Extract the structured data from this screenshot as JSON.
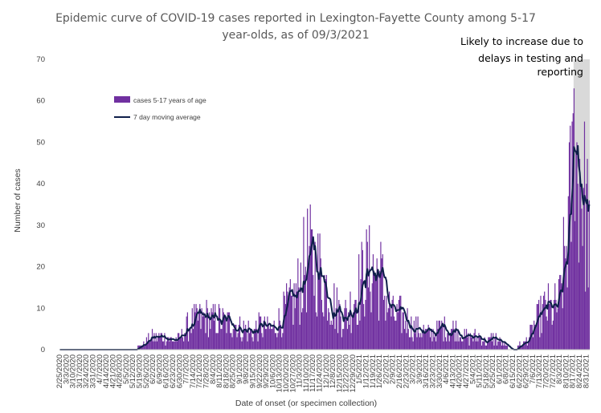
{
  "chart_data": {
    "type": "bar",
    "title_lines": [
      "Epidemic curve of COVID-19 cases reported in Lexington-Fayette County among 5-17",
      "year-olds, as of 09/3/2021"
    ],
    "xlabel": "Date of onset (or specimen collection)",
    "ylabel": "Number of cases",
    "ylim": [
      0,
      70
    ],
    "yticks": [
      0,
      10,
      20,
      30,
      40,
      50,
      60,
      70
    ],
    "x_range": [
      "2020-02-25",
      "2021-09-03"
    ],
    "x_tick_labels": [
      "2/25/2020",
      "3/3/2020",
      "3/10/2020",
      "3/17/2020",
      "3/24/2020",
      "3/31/2020",
      "4/7/2020",
      "4/14/2020",
      "4/21/2020",
      "4/28/2020",
      "5/5/2020",
      "5/12/2020",
      "5/19/2020",
      "5/26/2020",
      "6/2/2020",
      "6/9/2020",
      "6/16/2020",
      "6/23/2020",
      "6/30/2020",
      "7/7/2020",
      "7/14/2020",
      "7/21/2020",
      "7/28/2020",
      "8/4/2020",
      "8/11/2020",
      "8/18/2020",
      "8/25/2020",
      "9/1/2020",
      "9/8/2020",
      "9/15/2020",
      "9/22/2020",
      "9/29/2020",
      "10/6/2020",
      "10/13/2020",
      "10/20/2020",
      "10/27/2020",
      "11/3/2020",
      "11/10/2020",
      "11/17/2020",
      "11/24/2020",
      "12/1/2020",
      "12/8/2020",
      "12/15/2020",
      "12/22/2020",
      "12/29/2020",
      "1/5/2021",
      "1/12/2021",
      "1/19/2021",
      "1/26/2021",
      "2/2/2021",
      "2/9/2021",
      "2/16/2021",
      "2/23/2021",
      "3/2/2021",
      "3/9/2021",
      "3/16/2021",
      "3/23/2021",
      "3/30/2021",
      "4/6/2021",
      "4/13/2021",
      "4/20/2021",
      "4/27/2021",
      "5/4/2021",
      "5/11/2021",
      "5/18/2021",
      "5/25/2021",
      "6/1/2021",
      "6/8/2021",
      "6/15/2021",
      "6/22/2021",
      "6/29/2021",
      "7/6/2021",
      "7/13/2021",
      "7/20/2021",
      "7/27/2021",
      "8/3/2021",
      "8/10/2021",
      "8/17/2021",
      "8/24/2021",
      "8/31/2021"
    ],
    "grid": false,
    "legend_position": "upper-left",
    "series": [
      {
        "name": "cases 5-17 years of age",
        "kind": "bar",
        "color": "#7030A0",
        "weekly_anchors": [
          0,
          0,
          0,
          0,
          0,
          0,
          0,
          0,
          0,
          0,
          0,
          0,
          1,
          2,
          3,
          3,
          3,
          2,
          3,
          5,
          7,
          7,
          8,
          7,
          7,
          6,
          7,
          5,
          5,
          4,
          6,
          5,
          5,
          7,
          10,
          11,
          16,
          22,
          21,
          19,
          15,
          11,
          9,
          8,
          12,
          16,
          19,
          19,
          18,
          12,
          8,
          8,
          7,
          5,
          5,
          4,
          4,
          5,
          5,
          5,
          4,
          3,
          3,
          3,
          2,
          3,
          2,
          1,
          0,
          1,
          2,
          5,
          8,
          10,
          9,
          12,
          25,
          43,
          45,
          32,
          28
        ]
      },
      {
        "name": "7 day moving average",
        "kind": "line",
        "color": "#0F1F4A"
      }
    ],
    "peak_value": 63,
    "peak_date": "2021-08-18",
    "annotation": {
      "lines": [
        "Likely to increase due to",
        "delays in testing and",
        "reporting"
      ],
      "shaded_from": "2021-08-18",
      "shaded_to": "2021-09-03",
      "shade_color": "#D9D9D9"
    }
  }
}
